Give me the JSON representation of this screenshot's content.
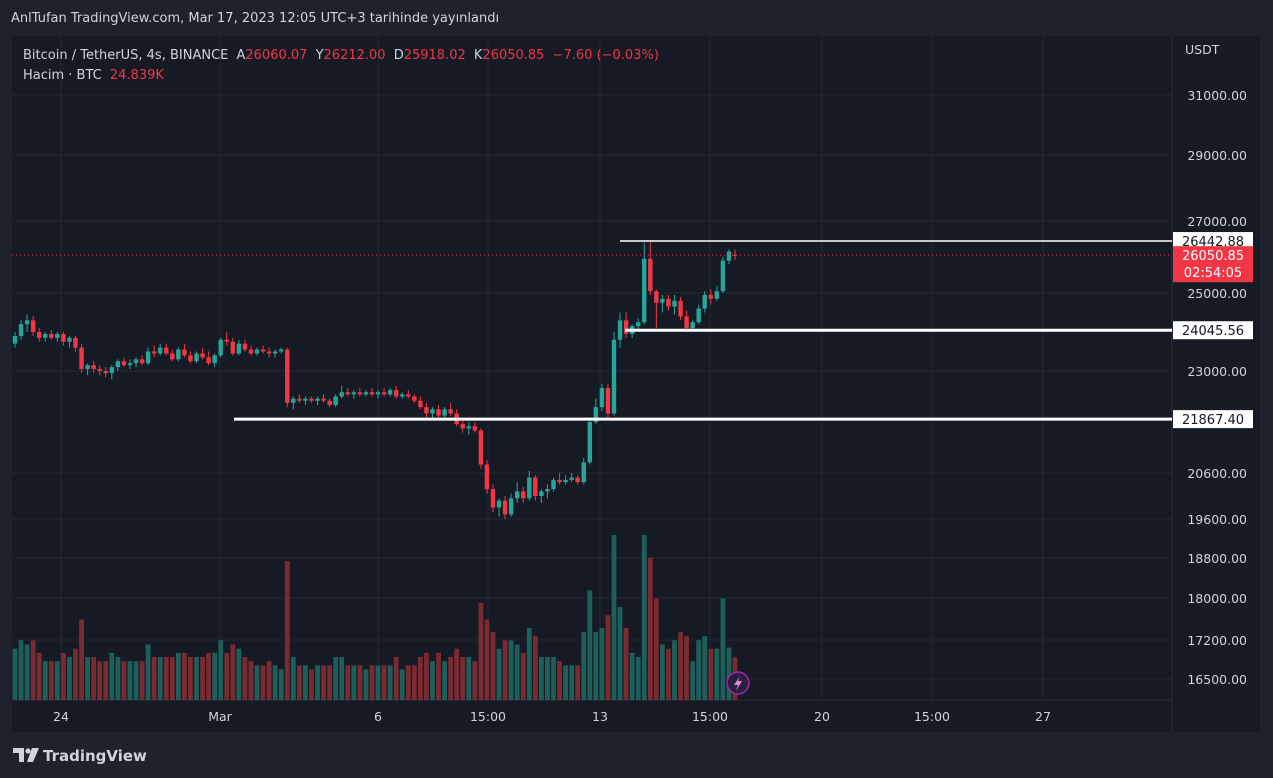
{
  "header": {
    "published": "AnlTufan TradingView.com, Mar 17, 2023 12:05 UTC+3 tarihinde yayınlandı"
  },
  "legend": {
    "symbol": "Bitcoin / TetherUS, 4s, BINANCE",
    "open_label": "A",
    "open": "26060.07",
    "high_label": "Y",
    "high": "26212.00",
    "low_label": "D",
    "low": "25918.02",
    "close_label": "K",
    "close": "26050.85",
    "change": "−7.60 (−0.03%)",
    "volume_label": "Hacim · BTC",
    "volume": "24.839K"
  },
  "axis": {
    "currency": "USDT"
  },
  "footer": {
    "brand": "TradingView"
  },
  "colors": {
    "up": "#26a69a",
    "down": "#f23645",
    "line": "#ffffff",
    "background": "#161a25"
  },
  "chart_data": {
    "type": "candlestick",
    "price_axis_ticks": [
      31000,
      29000,
      27000,
      25000,
      23000,
      20600,
      19600,
      18800,
      18000,
      17200,
      16500
    ],
    "price_axis_tick_labels": [
      "31000.00",
      "29000.00",
      "27000.00",
      "25000.00",
      "23000.00",
      "20600.00",
      "19600.00",
      "18800.00",
      "18000.00",
      "17200.00",
      "16500.00"
    ],
    "time_axis_labels": [
      "24",
      "Mar",
      "6",
      "15:00",
      "13",
      "15:00",
      "20",
      "15:00",
      "27"
    ],
    "horizontal_lines": [
      {
        "price": 26442.88,
        "label": "26442.88"
      },
      {
        "price": 24045.56,
        "label": "24045.56"
      },
      {
        "price": 21867.4,
        "label": "21867.40"
      }
    ],
    "last_price": {
      "price": 26050.85,
      "label": "26050.85",
      "countdown": "02:54:05"
    },
    "ohlc": [
      [
        23700,
        24000,
        23600,
        23900
      ],
      [
        23900,
        24300,
        23800,
        24200
      ],
      [
        24200,
        24450,
        24000,
        24300
      ],
      [
        24300,
        24400,
        23900,
        24000
      ],
      [
        24000,
        24100,
        23750,
        23850
      ],
      [
        23850,
        24000,
        23750,
        23950
      ],
      [
        23950,
        24050,
        23800,
        23850
      ],
      [
        23850,
        24000,
        23750,
        23950
      ],
      [
        23950,
        24000,
        23650,
        23750
      ],
      [
        23750,
        23900,
        23600,
        23850
      ],
      [
        23850,
        23900,
        23500,
        23600
      ],
      [
        23600,
        23700,
        22950,
        23050
      ],
      [
        23050,
        23200,
        22900,
        23150
      ],
      [
        23150,
        23250,
        22950,
        23050
      ],
      [
        23050,
        23150,
        22900,
        23000
      ],
      [
        23000,
        23100,
        22850,
        22950
      ],
      [
        22950,
        23150,
        22800,
        23100
      ],
      [
        23100,
        23300,
        23000,
        23250
      ],
      [
        23250,
        23350,
        23100,
        23150
      ],
      [
        23150,
        23300,
        23050,
        23200
      ],
      [
        23200,
        23350,
        23100,
        23300
      ],
      [
        23300,
        23400,
        23150,
        23200
      ],
      [
        23200,
        23600,
        23150,
        23500
      ],
      [
        23500,
        23650,
        23350,
        23450
      ],
      [
        23450,
        23700,
        23400,
        23600
      ],
      [
        23600,
        23700,
        23400,
        23450
      ],
      [
        23450,
        23550,
        23250,
        23300
      ],
      [
        23300,
        23600,
        23250,
        23550
      ],
      [
        23550,
        23700,
        23350,
        23400
      ],
      [
        23400,
        23500,
        23200,
        23250
      ],
      [
        23250,
        23500,
        23200,
        23450
      ],
      [
        23450,
        23600,
        23300,
        23350
      ],
      [
        23350,
        23500,
        23150,
        23200
      ],
      [
        23200,
        23450,
        23100,
        23400
      ],
      [
        23400,
        23850,
        23350,
        23800
      ],
      [
        23800,
        24000,
        23650,
        23750
      ],
      [
        23750,
        23850,
        23400,
        23450
      ],
      [
        23450,
        23800,
        23400,
        23700
      ],
      [
        23700,
        23800,
        23500,
        23550
      ],
      [
        23550,
        23650,
        23400,
        23450
      ],
      [
        23450,
        23600,
        23400,
        23550
      ],
      [
        23550,
        23650,
        23450,
        23500
      ],
      [
        23500,
        23600,
        23350,
        23450
      ],
      [
        23450,
        23550,
        23350,
        23500
      ],
      [
        23500,
        23600,
        23450,
        23550
      ],
      [
        23550,
        23600,
        22150,
        22250
      ],
      [
        22250,
        22400,
        22100,
        22350
      ],
      [
        22350,
        22450,
        22250,
        22300
      ],
      [
        22300,
        22400,
        22200,
        22350
      ],
      [
        22350,
        22400,
        22250,
        22300
      ],
      [
        22300,
        22400,
        22200,
        22350
      ],
      [
        22350,
        22450,
        22250,
        22300
      ],
      [
        22300,
        22350,
        22150,
        22200
      ],
      [
        22200,
        22450,
        22150,
        22400
      ],
      [
        22400,
        22650,
        22350,
        22500
      ],
      [
        22500,
        22600,
        22400,
        22450
      ],
      [
        22450,
        22550,
        22350,
        22500
      ],
      [
        22500,
        22600,
        22400,
        22450
      ],
      [
        22450,
        22550,
        22400,
        22500
      ],
      [
        22500,
        22600,
        22400,
        22450
      ],
      [
        22450,
        22550,
        22350,
        22500
      ],
      [
        22500,
        22600,
        22400,
        22450
      ],
      [
        22450,
        22600,
        22400,
        22550
      ],
      [
        22550,
        22650,
        22350,
        22400
      ],
      [
        22400,
        22500,
        22350,
        22450
      ],
      [
        22450,
        22550,
        22350,
        22400
      ],
      [
        22400,
        22450,
        22250,
        22300
      ],
      [
        22300,
        22400,
        22100,
        22150
      ],
      [
        22150,
        22250,
        21900,
        22000
      ],
      [
        22000,
        22150,
        21900,
        22100
      ],
      [
        22100,
        22200,
        21850,
        21950
      ],
      [
        21950,
        22150,
        21900,
        22100
      ],
      [
        22100,
        22250,
        21950,
        22000
      ],
      [
        22000,
        22100,
        21700,
        21750
      ],
      [
        21750,
        21850,
        21550,
        21650
      ],
      [
        21650,
        21800,
        21500,
        21700
      ],
      [
        21700,
        21800,
        21550,
        21600
      ],
      [
        21600,
        21650,
        20700,
        20800
      ],
      [
        20800,
        20900,
        20150,
        20250
      ],
      [
        20250,
        20350,
        19750,
        19850
      ],
      [
        19850,
        20050,
        19650,
        20000
      ],
      [
        20000,
        20100,
        19600,
        19700
      ],
      [
        19700,
        20150,
        19650,
        20050
      ],
      [
        20050,
        20400,
        19950,
        20200
      ],
      [
        20200,
        20300,
        19950,
        20050
      ],
      [
        20050,
        20650,
        20000,
        20500
      ],
      [
        20500,
        20550,
        20000,
        20100
      ],
      [
        20100,
        20250,
        19950,
        20200
      ],
      [
        20200,
        20350,
        20050,
        20250
      ],
      [
        20250,
        20500,
        20200,
        20450
      ],
      [
        20450,
        20600,
        20350,
        20400
      ],
      [
        20400,
        20550,
        20350,
        20450
      ],
      [
        20450,
        20600,
        20400,
        20500
      ],
      [
        20500,
        20550,
        20350,
        20400
      ],
      [
        20400,
        20950,
        20350,
        20850
      ],
      [
        20850,
        21900,
        20800,
        21800
      ],
      [
        21800,
        22350,
        21750,
        22150
      ],
      [
        22150,
        22700,
        22050,
        22600
      ],
      [
        22600,
        22700,
        21900,
        22000
      ],
      [
        22000,
        24000,
        21950,
        23800
      ],
      [
        23800,
        24500,
        23600,
        24300
      ],
      [
        24300,
        24500,
        23850,
        23950
      ],
      [
        23950,
        24200,
        23850,
        24150
      ],
      [
        24150,
        24350,
        24050,
        24250
      ],
      [
        24250,
        26400,
        24200,
        25950
      ],
      [
        25950,
        26442,
        24950,
        25050
      ],
      [
        25050,
        25100,
        24100,
        24750
      ],
      [
        24750,
        24950,
        24500,
        24850
      ],
      [
        24850,
        24950,
        24550,
        24650
      ],
      [
        24650,
        24950,
        24450,
        24800
      ],
      [
        24800,
        24900,
        24300,
        24400
      ],
      [
        24400,
        24550,
        24000,
        24100
      ],
      [
        24100,
        24300,
        24050,
        24250
      ],
      [
        24250,
        24700,
        24200,
        24600
      ],
      [
        24600,
        25050,
        24500,
        24950
      ],
      [
        24950,
        25100,
        24700,
        24850
      ],
      [
        24850,
        25200,
        24800,
        25050
      ],
      [
        25050,
        26000,
        25000,
        25900
      ],
      [
        25900,
        26212,
        25800,
        26150
      ],
      [
        26060,
        26212,
        25918,
        26051
      ]
    ],
    "volume_scale_max": 10
  }
}
